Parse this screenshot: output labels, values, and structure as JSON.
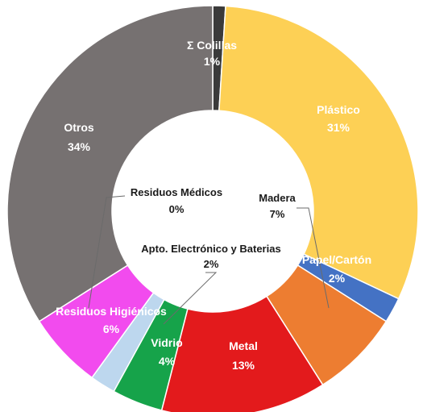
{
  "chart_data": {
    "type": "pie",
    "subtype": "donut",
    "slices": [
      {
        "label": "Σ Colillas",
        "value": 1,
        "display": "1%",
        "color": "#3a3a3a"
      },
      {
        "label": "Plástico",
        "value": 31,
        "display": "31%",
        "color": "#fdd055"
      },
      {
        "label": "Papel/Cartón",
        "value": 2,
        "display": "2%",
        "color": "#4472c4"
      },
      {
        "label": "Madera",
        "value": 7,
        "display": "7%",
        "color": "#ed7d31"
      },
      {
        "label": "Metal",
        "value": 13,
        "display": "13%",
        "color": "#e31a1c"
      },
      {
        "label": "Vidrio",
        "value": 4,
        "display": "4%",
        "color": "#16a34a"
      },
      {
        "label": "Apto. Electrónico y Baterias",
        "value": 2,
        "display": "2%",
        "color": "#bdd7ee"
      },
      {
        "label": "Residuos Higiénicos",
        "value": 6,
        "display": "6%",
        "color": "#f24bee"
      },
      {
        "label": "Residuos Médicos",
        "value": 0,
        "display": "0%",
        "color": "#d9d9d9"
      },
      {
        "label": "Otros",
        "value": 34,
        "display": "34%",
        "color": "#767171"
      }
    ],
    "legend": "none"
  }
}
